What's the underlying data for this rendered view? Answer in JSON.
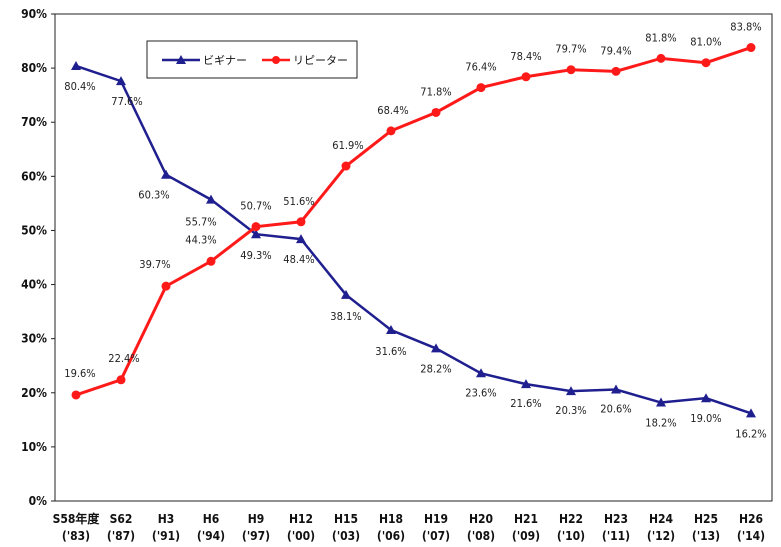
{
  "chart_data": {
    "type": "line",
    "categories": [
      "S58年度",
      "S62",
      "H3",
      "H6",
      "H9",
      "H12",
      "H15",
      "H18",
      "H19",
      "H20",
      "H21",
      "H22",
      "H23",
      "H24",
      "H25",
      "H26"
    ],
    "categories_sub": [
      "('83)",
      "('87)",
      "('91)",
      "('94)",
      "('97)",
      "('00)",
      "('03)",
      "('06)",
      "('07)",
      "('08)",
      "('09)",
      "('10)",
      "('11)",
      "('12)",
      "('13)",
      "('14)"
    ],
    "series": [
      {
        "name": "ビギナー",
        "color": "#1f1f8f",
        "marker": "triangle",
        "values": [
          80.4,
          77.6,
          60.3,
          55.7,
          49.3,
          48.4,
          38.1,
          31.6,
          28.2,
          23.6,
          21.6,
          20.3,
          20.6,
          18.2,
          19.0,
          16.2
        ],
        "labels": [
          "80.4%",
          "77.6%",
          "60.3%",
          "55.7%",
          "49.3%",
          "48.4%",
          "38.1%",
          "31.6%",
          "28.2%",
          "23.6%",
          "21.6%",
          "20.3%",
          "20.6%",
          "18.2%",
          "19.0%",
          "16.2%"
        ]
      },
      {
        "name": "リピーター",
        "color": "#ff1a1a",
        "marker": "circle",
        "values": [
          19.6,
          22.4,
          39.7,
          44.3,
          50.7,
          51.6,
          61.9,
          68.4,
          71.8,
          76.4,
          78.4,
          79.7,
          79.4,
          81.8,
          81.0,
          83.8
        ],
        "labels": [
          "19.6%",
          "22.4%",
          "39.7%",
          "44.3%",
          "50.7%",
          "51.6%",
          "61.9%",
          "68.4%",
          "71.8%",
          "76.4%",
          "78.4%",
          "79.7%",
          "79.4%",
          "81.8%",
          "81.0%",
          "83.8%"
        ]
      }
    ],
    "ylim": [
      0,
      90
    ],
    "yticks": [
      "0%",
      "10%",
      "20%",
      "30%",
      "40%",
      "50%",
      "60%",
      "70%",
      "80%",
      "90%"
    ],
    "legend": "top-left",
    "grid": false
  }
}
